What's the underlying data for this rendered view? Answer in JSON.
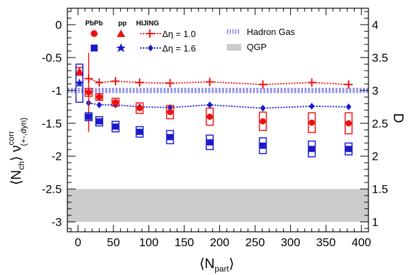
{
  "chart_data": {
    "type": "scatter",
    "xlabel": {
      "main": "⟨N",
      "sub": "part",
      "end": "⟩"
    },
    "ylabel": {
      "main": "⟨N",
      "sub": "ch",
      "mid": "⟩ ν",
      "sup": "corr",
      "sub2": "(+-,dyn)"
    },
    "y2label": "D",
    "xlim": [
      -15,
      410
    ],
    "ylim": [
      -3.15,
      0.25
    ],
    "y2lim": [
      0.85,
      4.25
    ],
    "x_ticks": [
      0,
      50,
      100,
      150,
      200,
      250,
      300,
      350,
      400
    ],
    "x_tick_labels": [
      "0",
      "50",
      "100",
      "150",
      "200",
      "250",
      "300",
      "350",
      "400"
    ],
    "y_ticks": [
      0,
      -0.5,
      -1,
      -1.5,
      -2,
      -2.5,
      -3
    ],
    "y_tick_labels": [
      "0",
      "-0.5",
      "-1",
      "-1.5",
      "-2",
      "-2.5",
      "-3"
    ],
    "y2_ticks": [
      4,
      3.5,
      3,
      2.5,
      2,
      1.5,
      1
    ],
    "y2_tick_labels": [
      "4",
      "3.5",
      "3",
      "2.5",
      "2",
      "1.5",
      "1"
    ],
    "legend": {
      "col_pbpb": "PbPb",
      "col_pp": "pp",
      "col_hijing": "HIJING",
      "hijing_1": "Δη = 1.0",
      "hijing_2": "Δη = 1.6",
      "hadron_gas": "Hadron Gas",
      "qgp": "QGP"
    },
    "bands": [
      {
        "name": "Hadron Gas",
        "y_center": -1.0,
        "half_width": 0.04,
        "color": "#9a9af0"
      },
      {
        "name": "QGP",
        "y_from": -3.0,
        "y_to": -2.5,
        "color": "#cccccc"
      }
    ],
    "series": [
      {
        "name": "PbPb Δη = 1.0",
        "marker": "circle",
        "color": "#ee1111",
        "x": [
          15,
          30,
          53,
          87,
          130,
          186,
          261,
          330,
          382
        ],
        "y": [
          -1.03,
          -1.1,
          -1.18,
          -1.27,
          -1.33,
          -1.4,
          -1.47,
          -1.49,
          -1.5
        ],
        "stat_err": [
          0.6,
          0.03,
          0.02,
          0.02,
          0.02,
          0.02,
          0.02,
          0.02,
          0.02
        ],
        "sys_err": [
          0.06,
          0.05,
          0.06,
          0.08,
          0.1,
          0.13,
          0.14,
          0.15,
          0.16
        ]
      },
      {
        "name": "PbPb Δη = 1.6",
        "marker": "square",
        "color": "#1a1acc",
        "x": [
          15,
          30,
          53,
          87,
          130,
          186,
          261,
          330,
          382
        ],
        "y": [
          -1.4,
          -1.47,
          -1.55,
          -1.63,
          -1.71,
          -1.79,
          -1.84,
          -1.89,
          -1.89
        ],
        "stat_err": [
          0.03,
          0.03,
          0.02,
          0.02,
          0.02,
          0.02,
          0.02,
          0.02,
          0.02
        ],
        "sys_err": [
          0.06,
          0.07,
          0.08,
          0.08,
          0.1,
          0.11,
          0.12,
          0.12,
          0.09
        ]
      },
      {
        "name": "pp Δη = 1.0",
        "marker": "triangle",
        "color": "#ee1111",
        "x": [
          2
        ],
        "y": [
          -0.71
        ],
        "stat_err": [
          0.05
        ],
        "sys_err": [
          0.06
        ]
      },
      {
        "name": "pp Δη = 1.6",
        "marker": "star",
        "color": "#1a1acc",
        "x": [
          2
        ],
        "y": [
          -0.89
        ],
        "stat_err": [
          0.05
        ],
        "sys_err": [
          0.29
        ]
      },
      {
        "name": "HIJING Δη = 1.0",
        "marker": "cross",
        "color": "#ee1111",
        "x": [
          15,
          30,
          53,
          87,
          130,
          186,
          261,
          330,
          382
        ],
        "y": [
          -0.82,
          -0.88,
          -0.86,
          -0.88,
          -0.89,
          -0.87,
          -0.91,
          -0.88,
          -0.91
        ]
      },
      {
        "name": "HIJING Δη = 1.6",
        "marker": "diamond",
        "color": "#1a1acc",
        "x": [
          15,
          30,
          53,
          87,
          130,
          186,
          261,
          330,
          382
        ],
        "y": [
          -1.19,
          -1.22,
          -1.22,
          -1.25,
          -1.26,
          -1.22,
          -1.27,
          -1.24,
          -1.25
        ]
      }
    ]
  }
}
